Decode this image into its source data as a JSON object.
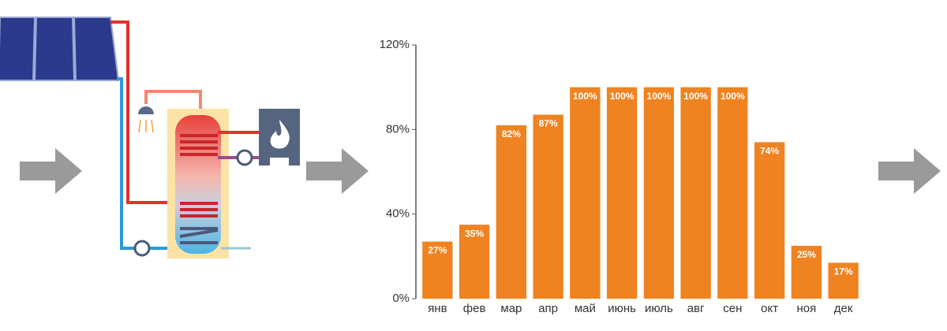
{
  "chart_data": {
    "type": "bar",
    "categories": [
      "янв",
      "фев",
      "мар",
      "апр",
      "май",
      "июнь",
      "июль",
      "авг",
      "сен",
      "окт",
      "ноя",
      "дек"
    ],
    "values": [
      27,
      35,
      82,
      87,
      100,
      100,
      100,
      100,
      100,
      74,
      25,
      17
    ],
    "value_labels": [
      "27%",
      "35%",
      "82%",
      "87%",
      "100%",
      "100%",
      "100%",
      "100%",
      "100%",
      "74%",
      "25%",
      "17%"
    ],
    "color": "#ef8321",
    "ylim": [
      0,
      120
    ],
    "yticks": [
      {
        "value": 0,
        "label": "0%"
      },
      {
        "value": 40,
        "label": "40%"
      },
      {
        "value": 80,
        "label": "80%"
      },
      {
        "value": 120,
        "label": "120%"
      }
    ],
    "grid": false
  }
}
